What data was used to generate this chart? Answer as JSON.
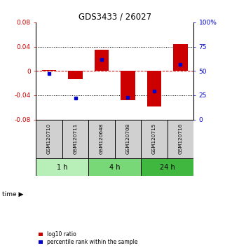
{
  "title": "GDS3433 / 26027",
  "samples": [
    "GSM120710",
    "GSM120711",
    "GSM120648",
    "GSM120708",
    "GSM120715",
    "GSM120716"
  ],
  "log10_ratio": [
    0.002,
    -0.013,
    0.035,
    -0.048,
    -0.058,
    0.044
  ],
  "percentile_rank": [
    47,
    22,
    62,
    23,
    29,
    57
  ],
  "time_groups": [
    {
      "label": "1 h",
      "samples": [
        0,
        1
      ],
      "color": "#b8eeb8"
    },
    {
      "label": "4 h",
      "samples": [
        2,
        3
      ],
      "color": "#78d878"
    },
    {
      "label": "24 h",
      "samples": [
        4,
        5
      ],
      "color": "#40b840"
    }
  ],
  "ylim_left": [
    -0.08,
    0.08
  ],
  "ylim_right": [
    0,
    100
  ],
  "yticks_left": [
    -0.08,
    -0.04,
    0,
    0.04,
    0.08
  ],
  "yticks_right": [
    0,
    25,
    50,
    75,
    100
  ],
  "bar_color_red": "#cc0000",
  "bar_color_blue": "#0000cc",
  "grid_color": "#000000",
  "zero_line_color": "#cc0000",
  "background_color": "#ffffff",
  "label_log10": "log10 ratio",
  "label_pct": "percentile rank within the sample",
  "time_label": "time"
}
